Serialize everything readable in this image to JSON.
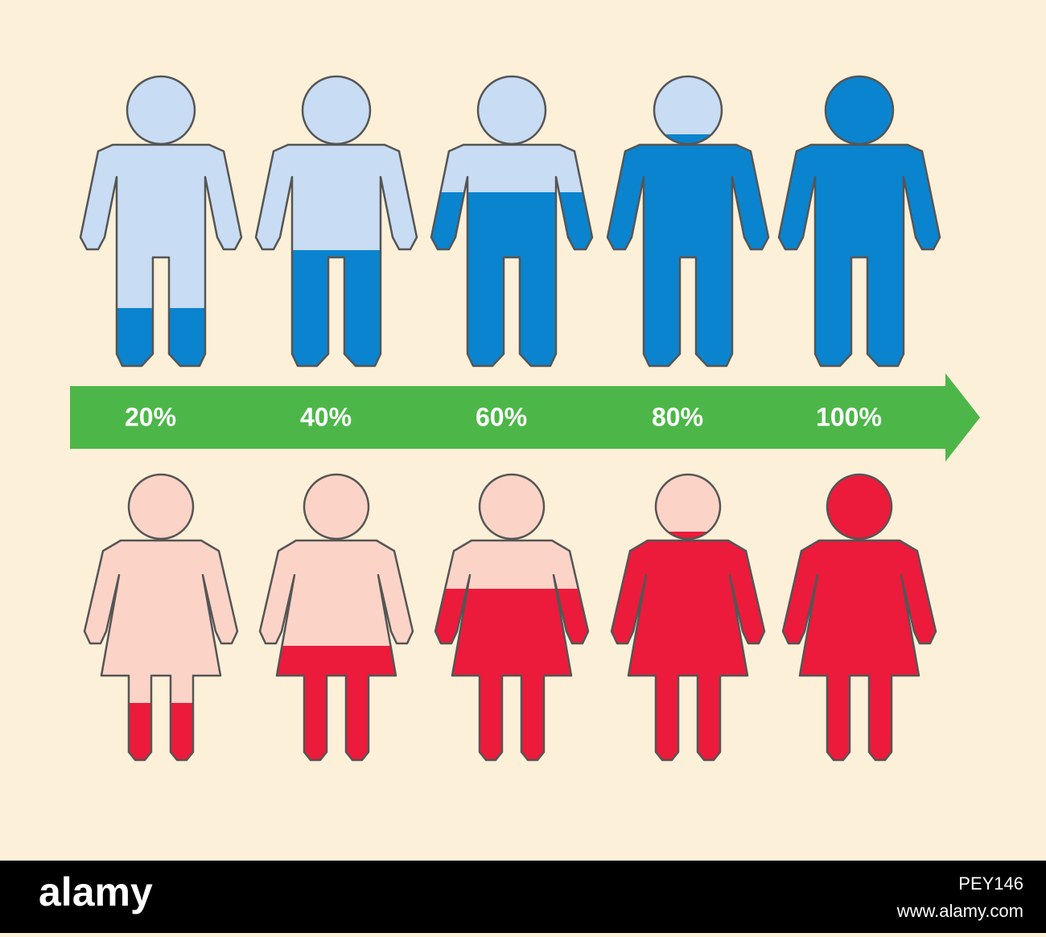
{
  "chart_data": {
    "type": "pictograph",
    "values": [
      20,
      40,
      60,
      80,
      100
    ],
    "value_labels": [
      "20%",
      "40%",
      "60%",
      "80%",
      "100%"
    ],
    "ylim": [
      0,
      100
    ],
    "fill_colors": [
      "#0a84cf",
      "#ec1b3b"
    ],
    "empty_colors": [
      "#c8dcf3",
      "#fbd4c7"
    ],
    "arrow_color": "#4cb748"
  },
  "footer": {
    "brand": "alamy",
    "image_id": "PEY146",
    "url": "www.alamy.com"
  }
}
